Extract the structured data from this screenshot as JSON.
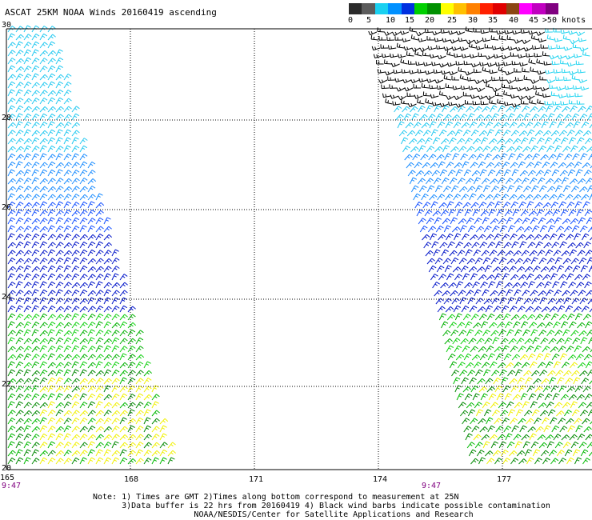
{
  "title": "ASCAT 25KM NOAA Winds 20160419 ascending",
  "scale": {
    "labels": [
      "0",
      "5",
      "10",
      "15",
      "20",
      "25",
      "30",
      "35",
      "40",
      "45",
      ">50 knots"
    ],
    "colors": [
      "#2b2b2b",
      "#5c5c5c",
      "#1ad0f0",
      "#0090ff",
      "#0030e0",
      "#00d000",
      "#009000",
      "#ffff00",
      "#ffc000",
      "#ff8000",
      "#ff2000",
      "#e00000",
      "#8b4513",
      "#ff00ff",
      "#c000c0",
      "#800080"
    ]
  },
  "map": {
    "lat_labels": [
      "30",
      "28",
      "26",
      "24",
      "22",
      "20"
    ],
    "lon_labels": [
      "165",
      "168",
      "171",
      "174",
      "177"
    ],
    "time_labels": [
      "9:47",
      "9:47"
    ]
  },
  "notes": {
    "line1": "Note: 1) Times are GMT 2)Times along bottom correspond to measurement at 25N",
    "line2": "      3)Data buffer is 22 hrs from 20160419 4) Black wind barbs indicate possible contamination",
    "line3": "                     NOAA/NESDIS/Center for Satellite Applications and Research"
  }
}
